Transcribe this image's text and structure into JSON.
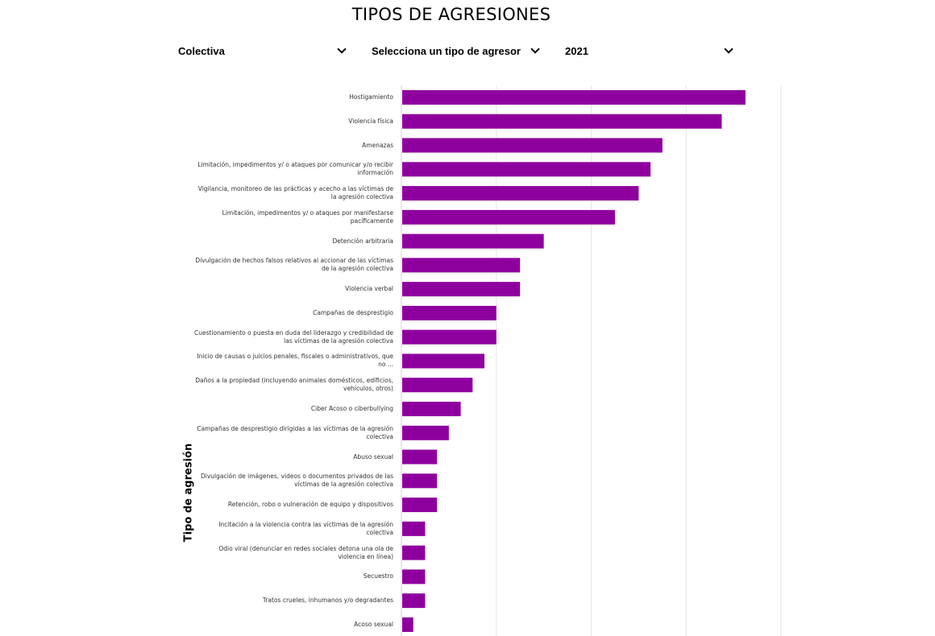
{
  "title": "TIPOS DE AGRESIONES",
  "filters": [
    {
      "value": "Colectiva"
    },
    {
      "value": "Selecciona un tipo de agresor"
    },
    {
      "value": "2021"
    }
  ],
  "colors": {
    "bar": "#8e009e",
    "grid": "#e6e6e6"
  },
  "chart_data": {
    "type": "bar",
    "orientation": "horizontal",
    "title": "TIPOS DE AGRESIONES",
    "ylabel": "Tipo de agresión",
    "xlabel": "",
    "xlim": [
      0,
      32
    ],
    "grid": true,
    "categories": [
      "Hostigamiento",
      "Violencia física",
      "Amenazas",
      "Limitación, impedimentos y/ o ataques por comunicar y/o recibir información",
      "Vigilancia, monitoreo de las prácticas y acecho a las víctimas de la agresión colectiva",
      "Limitación, impedimentos y/ o ataques por manifestarse pacíficamente",
      "Detención arbitraria",
      "Divulgación de hechos falsos relativos al accionar de las víctimas de la agresión colectiva",
      "Violencia verbal",
      "Campañas de desprestigio",
      "Cuestionamiento o puesta en duda del liderazgo y credibilidad de las víctimas de la agresión colectiva",
      "Inicio de causas o juicios penales, fiscales o administrativos, que no ...",
      "Daños a la propiedad (incluyendo animales domésticos, edificios, vehículos, otros)",
      "Ciber Acoso o ciberbullying",
      "Campañas de desprestigio dirigidas a las víctimas de la agresión colectiva",
      "Abuso sexual",
      "Divulgación de imágenes, videos o documentos privados de las víctimas de la agresión colectiva",
      "Retención, robo o vulneración de equipo y dispositivos",
      "Incitación a la violencia contra las víctimas de la agresión colectiva",
      "Odio viral (denunciar en redes sociales detona una ola de violencia en línea)",
      "Secuestro",
      "Tratos crueles, inhumanos y/o degradantes",
      "Acoso sexual"
    ],
    "values": [
      29,
      27,
      22,
      21,
      20,
      18,
      12,
      10,
      10,
      8,
      8,
      7,
      6,
      5,
      4,
      3,
      3,
      3,
      2,
      2,
      2,
      2,
      1
    ]
  }
}
